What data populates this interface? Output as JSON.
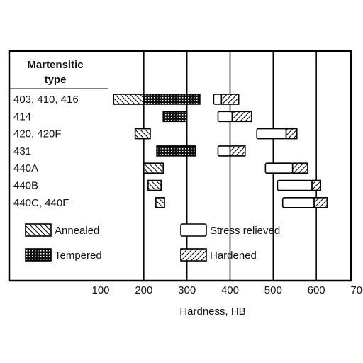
{
  "chart_data": {
    "type": "bar",
    "subtype": "floating-range",
    "title": "",
    "row_header": [
      "Martensitic",
      "type"
    ],
    "categories": [
      "403, 410, 416",
      "414",
      "420, 420F",
      "431",
      "440A",
      "440B",
      "440C, 440F"
    ],
    "xlabel": "Hardness, HB",
    "ylabel": "",
    "xlim": [
      100,
      700
    ],
    "xticks": [
      100,
      200,
      300,
      400,
      500,
      600,
      700
    ],
    "grid": "vertical",
    "legend_position": "lower-left inside plot",
    "series": [
      {
        "name": "Annealed",
        "pattern": "back-diagonal-hatch",
        "ranges": [
          [
            130,
            200
          ],
          null,
          [
            180,
            215
          ],
          null,
          [
            200,
            245
          ],
          [
            210,
            240
          ],
          [
            228,
            248
          ]
        ]
      },
      {
        "name": "Tempered",
        "pattern": "crosshatch-dark",
        "ranges": [
          [
            200,
            330
          ],
          [
            245,
            300
          ],
          null,
          [
            230,
            320
          ],
          null,
          null,
          null
        ]
      },
      {
        "name": "Stress relieved",
        "pattern": "open",
        "ranges": [
          [
            362,
            380
          ],
          [
            372,
            405
          ],
          [
            462,
            530
          ],
          [
            372,
            400
          ],
          [
            482,
            545
          ],
          [
            510,
            590
          ],
          [
            522,
            595
          ]
        ]
      },
      {
        "name": "Hardened",
        "pattern": "forward-diagonal-hatch",
        "ranges": [
          [
            380,
            420
          ],
          [
            405,
            450
          ],
          [
            530,
            555
          ],
          [
            400,
            435
          ],
          [
            545,
            580
          ],
          [
            590,
            610
          ],
          [
            595,
            625
          ]
        ]
      }
    ]
  }
}
